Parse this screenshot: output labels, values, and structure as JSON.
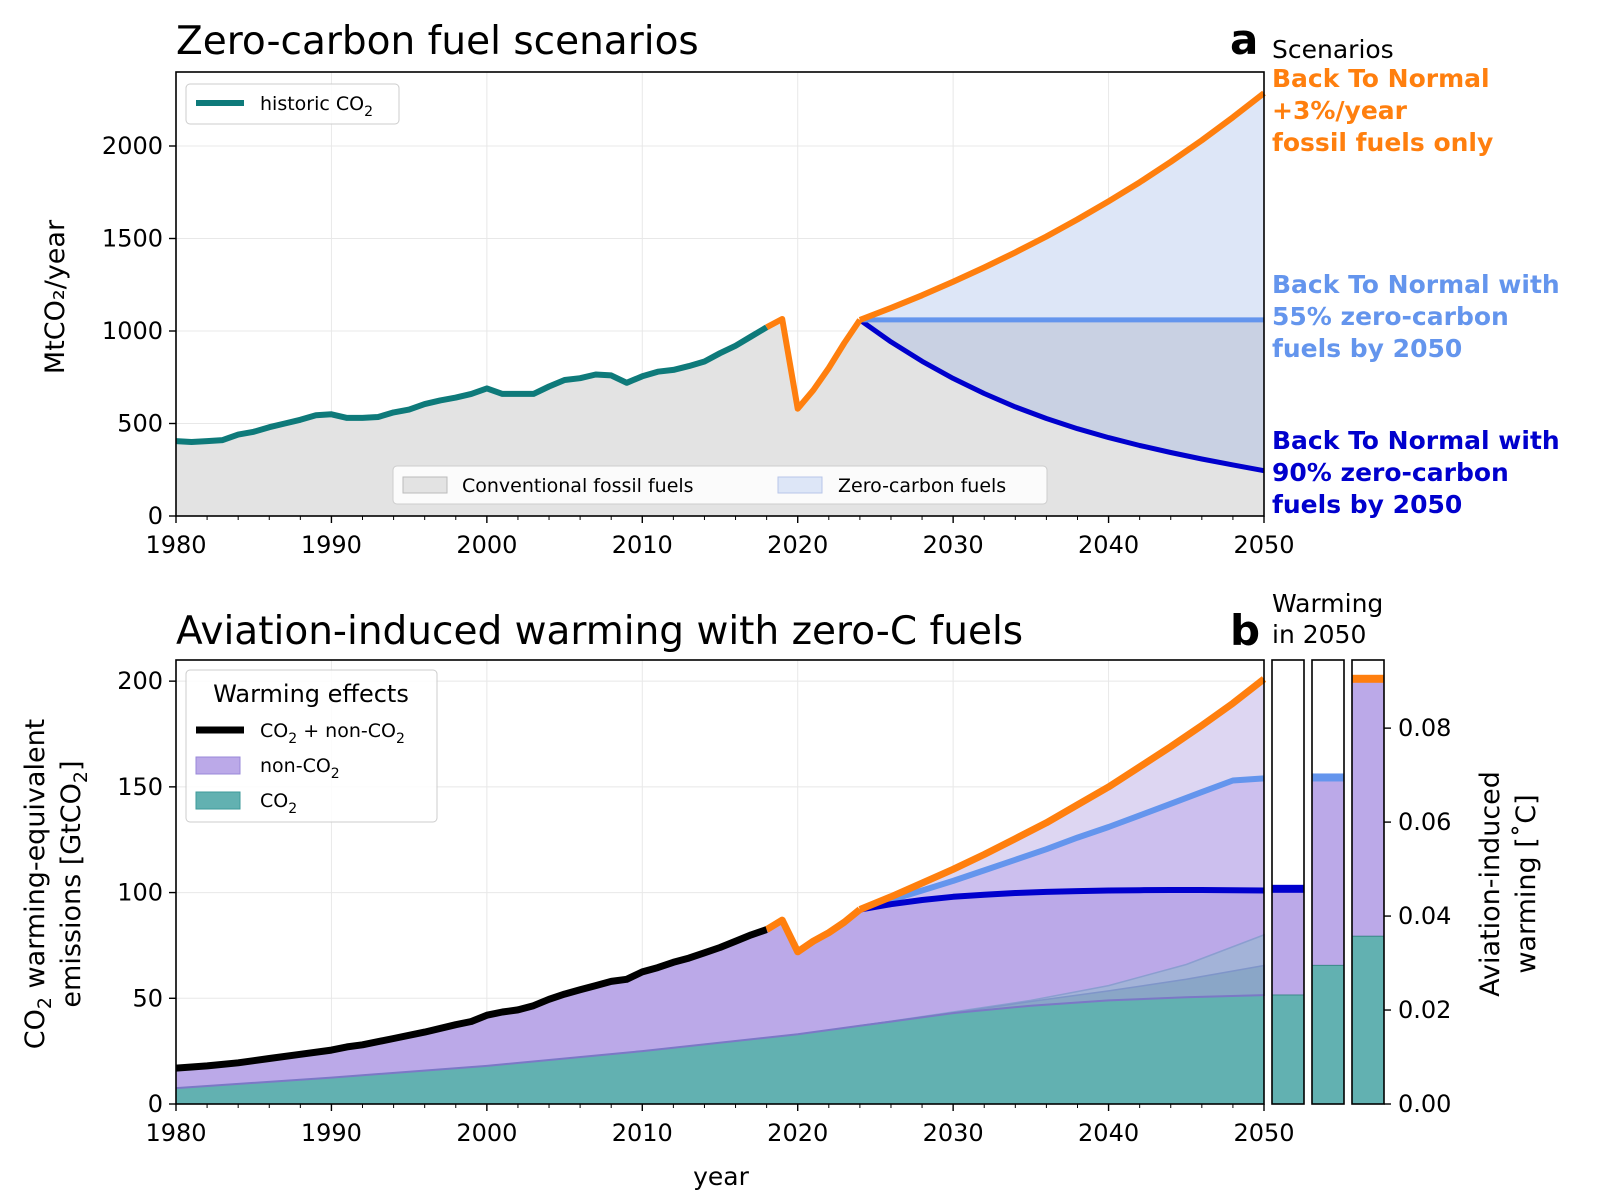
{
  "colors": {
    "historic": "#0e7a7a",
    "btn": "#ff7f0e",
    "btn55": "#6495ed",
    "btn90": "#0000cd",
    "black": "#000000",
    "fossil_fill": "#e3e3e3",
    "zero_fill": "#dde6f7",
    "zero_fill_dark": "#c9d1e3",
    "nonco2_fill": "#bba9e8",
    "co2_fill": "#62b1b1"
  },
  "panel_a": {
    "letter": "a",
    "side_heading": "Scenarios",
    "scenario_labels": {
      "btn": [
        "Back To Normal",
        "+3%/year",
        "fossil fuels only"
      ],
      "btn55": [
        "Back To Normal with",
        "55% zero-carbon",
        "fuels by 2050"
      ],
      "btn90": [
        "Back To Normal with",
        "90% zero-carbon",
        "fuels by 2050"
      ]
    }
  },
  "panel_b": {
    "letter": "b",
    "side_heading": [
      "Warming",
      "in 2050"
    ]
  },
  "chart_data": [
    {
      "type": "line",
      "title": "Zero-carbon fuel scenarios",
      "xlabel": "",
      "ylabel": "MtCO₂/year",
      "xlim": [
        1980,
        2050
      ],
      "ylim": [
        0,
        2400
      ],
      "xticks": [
        1980,
        1990,
        2000,
        2010,
        2020,
        2030,
        2040,
        2050
      ],
      "yticks": [
        0,
        500,
        1000,
        1500,
        2000
      ],
      "grid": true,
      "legend_top": {
        "placement": "upper-left",
        "entries": [
          "historic CO₂"
        ]
      },
      "legend_bottom": {
        "placement": "lower-center",
        "entries": [
          "Conventional fossil fuels",
          "Zero-carbon fuels"
        ]
      },
      "historic": {
        "x": [
          1980,
          1981,
          1982,
          1983,
          1984,
          1985,
          1986,
          1987,
          1988,
          1989,
          1990,
          1991,
          1992,
          1993,
          1994,
          1995,
          1996,
          1997,
          1998,
          1999,
          2000,
          2001,
          2002,
          2003,
          2004,
          2005,
          2006,
          2007,
          2008,
          2009,
          2010,
          2011,
          2012,
          2013,
          2014,
          2015,
          2016,
          2017,
          2018
        ],
        "y": [
          405,
          400,
          405,
          410,
          440,
          455,
          480,
          500,
          520,
          545,
          550,
          530,
          530,
          535,
          560,
          575,
          605,
          625,
          640,
          660,
          690,
          660,
          660,
          660,
          700,
          735,
          745,
          765,
          760,
          720,
          755,
          780,
          790,
          810,
          835,
          880,
          920,
          970,
          1020
        ]
      },
      "rebound": {
        "x": [
          2018,
          2019,
          2020,
          2021,
          2022,
          2023,
          2024
        ],
        "y": [
          1020,
          1065,
          580,
          680,
          800,
          935,
          1060
        ]
      },
      "series": [
        {
          "name": "Back To Normal +3%/year fossil fuels only",
          "x": [
            2024,
            2026,
            2028,
            2030,
            2032,
            2034,
            2036,
            2038,
            2040,
            2042,
            2044,
            2046,
            2048,
            2050
          ],
          "y": [
            1060,
            1125,
            1193,
            1266,
            1343,
            1425,
            1511,
            1603,
            1701,
            1804,
            1914,
            2031,
            2155,
            2286
          ]
        },
        {
          "name": "Back To Normal with 55% zero-carbon fuels by 2050",
          "x": [
            2024,
            2050
          ],
          "y": [
            1060,
            1060
          ]
        },
        {
          "name": "Back To Normal with 90% zero-carbon fuels by 2050",
          "x": [
            2024,
            2026,
            2028,
            2030,
            2032,
            2034,
            2036,
            2038,
            2040,
            2042,
            2044,
            2046,
            2048,
            2050
          ],
          "y": [
            1060,
            941,
            836,
            744,
            662,
            590,
            527,
            472,
            424,
            381,
            343,
            308,
            276,
            245
          ]
        }
      ]
    },
    {
      "type": "area",
      "title": "Aviation-induced warming with zero-C fuels",
      "xlabel": "year",
      "ylabel": "CO₂ warming-equivalent emissions [GtCO₂]",
      "xlim": [
        1980,
        2050
      ],
      "ylim": [
        0,
        210
      ],
      "xticks": [
        1980,
        1990,
        2000,
        2010,
        2020,
        2030,
        2040,
        2050
      ],
      "yticks": [
        0,
        50,
        100,
        150,
        200
      ],
      "grid": true,
      "legend": {
        "title": "Warming effects",
        "placement": "upper-left",
        "entries": [
          "CO₂ + non-CO₂",
          "non-CO₂",
          "CO₂"
        ]
      },
      "total_historic": {
        "x": [
          1980,
          1982,
          1984,
          1986,
          1988,
          1990,
          1991,
          1992,
          1994,
          1996,
          1998,
          1999,
          2000,
          2001,
          2002,
          2003,
          2004,
          2005,
          2006,
          2007,
          2008,
          2009,
          2010,
          2011,
          2012,
          2013,
          2014,
          2015,
          2016,
          2017,
          2018
        ],
        "y": [
          17,
          18,
          19.5,
          21.5,
          23.5,
          25.5,
          27,
          28,
          31,
          34,
          37.5,
          39,
          42,
          43.5,
          44.5,
          46.5,
          49.5,
          52,
          54,
          56,
          58,
          59,
          62.5,
          64.5,
          67,
          69,
          71.5,
          74,
          77,
          80,
          82.5
        ]
      },
      "total_rebound": {
        "x": [
          2018,
          2019,
          2020,
          2021,
          2022,
          2023,
          2024
        ],
        "y": [
          82.5,
          87,
          72,
          77,
          81,
          86,
          92
        ]
      },
      "co2_base": {
        "x": [
          1980,
          1990,
          2000,
          2010,
          2020,
          2024,
          2030,
          2035,
          2040,
          2045,
          2050
        ],
        "y": [
          7.5,
          12.5,
          18,
          25,
          33,
          37,
          43,
          46.5,
          49,
          50.5,
          51.5
        ]
      },
      "series": [
        {
          "name": "Back To Normal +3%/year fossil fuels only",
          "x": [
            2024,
            2026,
            2028,
            2030,
            2032,
            2034,
            2036,
            2038,
            2040,
            2042,
            2044,
            2046,
            2048,
            2050
          ],
          "y": [
            92,
            98,
            104.5,
            111,
            118,
            125.5,
            133,
            141.5,
            150,
            159.5,
            169,
            179,
            189.5,
            201
          ]
        },
        {
          "name": "Back To Normal with 55% zero-carbon fuels by 2050",
          "x": [
            2024,
            2026,
            2028,
            2030,
            2032,
            2034,
            2036,
            2038,
            2040,
            2042,
            2044,
            2046,
            2048,
            2050
          ],
          "y": [
            92,
            96.5,
            101,
            105.5,
            110.5,
            115.5,
            120.5,
            126,
            131,
            136.5,
            142,
            147.5,
            153,
            154
          ]
        },
        {
          "name": "Back To Normal with 90% zero-carbon fuels by 2050",
          "x": [
            2024,
            2026,
            2028,
            2030,
            2032,
            2034,
            2036,
            2038,
            2040,
            2042,
            2044,
            2046,
            2048,
            2050
          ],
          "y": [
            92,
            94.5,
            96.5,
            98,
            99,
            99.8,
            100.3,
            100.7,
            101,
            101.1,
            101.2,
            101.2,
            101.1,
            101
          ]
        }
      ],
      "co2_tails": [
        {
          "name": "Back To Normal +3%/year fossil fuels only",
          "x": [
            2024,
            2030,
            2035,
            2040,
            2045,
            2050
          ],
          "y": [
            37,
            43.5,
            49,
            56,
            66,
            80
          ]
        },
        {
          "name": "Back To Normal with 55% zero-carbon fuels by 2050",
          "x": [
            2024,
            2030,
            2035,
            2040,
            2045,
            2050
          ],
          "y": [
            37,
            43.2,
            48.5,
            53.5,
            59,
            65.5
          ]
        }
      ]
    },
    {
      "type": "bar",
      "title": "Warming in 2050",
      "ylabel": "Aviation-induced warming [˚C]",
      "ylim": [
        0,
        0.0945
      ],
      "yticks": [
        0.0,
        0.02,
        0.04,
        0.06,
        0.08
      ],
      "ytick_labels": [
        "0.00",
        "0.02",
        "0.04",
        "0.06",
        "0.08"
      ],
      "bars": [
        {
          "scenario": "Back To Normal with 90% zero-carbon fuels by 2050",
          "co2": 0.0232,
          "total": 0.0458
        },
        {
          "scenario": "Back To Normal with 55% zero-carbon fuels by 2050",
          "co2": 0.0295,
          "total": 0.0695
        },
        {
          "scenario": "Back To Normal +3%/year fossil fuels only",
          "co2": 0.0357,
          "total": 0.0905
        }
      ]
    }
  ]
}
